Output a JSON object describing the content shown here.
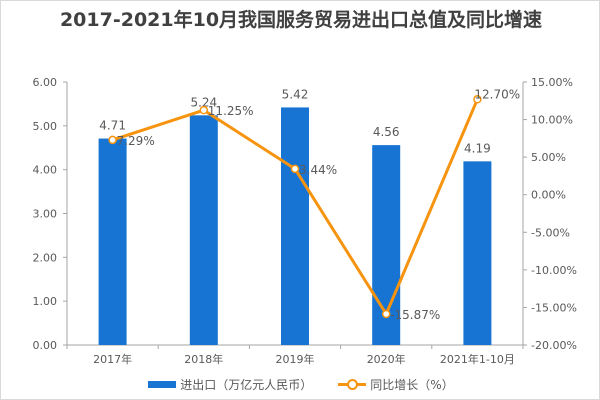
{
  "chart_data": {
    "type": "bar+line",
    "title": "2017-2021年10月我国服务贸易进出口总值及同比增速",
    "categories": [
      "2017年",
      "2018年",
      "2019年",
      "2020年",
      "2021年1-10月"
    ],
    "series": [
      {
        "name": "进出口（万亿元人民币）",
        "type": "bar",
        "axis": "left",
        "values": [
          4.71,
          5.24,
          5.42,
          4.56,
          4.19
        ],
        "labels": [
          "4.71",
          "5.24",
          "5.42",
          "4.56",
          "4.19"
        ],
        "color": "#1874d2"
      },
      {
        "name": "同比增长（%）",
        "type": "line",
        "axis": "right",
        "values": [
          7.29,
          11.25,
          3.44,
          -15.87,
          12.7
        ],
        "labels": [
          "7.29%",
          "11.25%",
          "3.44%",
          "-15.87%",
          "12.70%"
        ],
        "color": "#f7940f"
      }
    ],
    "y_left": {
      "lim": [
        0,
        6
      ],
      "ticks": [
        "0.00",
        "1.00",
        "2.00",
        "3.00",
        "4.00",
        "5.00",
        "6.00"
      ]
    },
    "y_right": {
      "lim": [
        -20,
        15
      ],
      "ticks": [
        "-20.00%",
        "-15.00%",
        "-10.00%",
        "-5.00%",
        "0.00%",
        "5.00%",
        "10.00%",
        "15.00%"
      ]
    },
    "grid": false,
    "legend": "bottom"
  }
}
